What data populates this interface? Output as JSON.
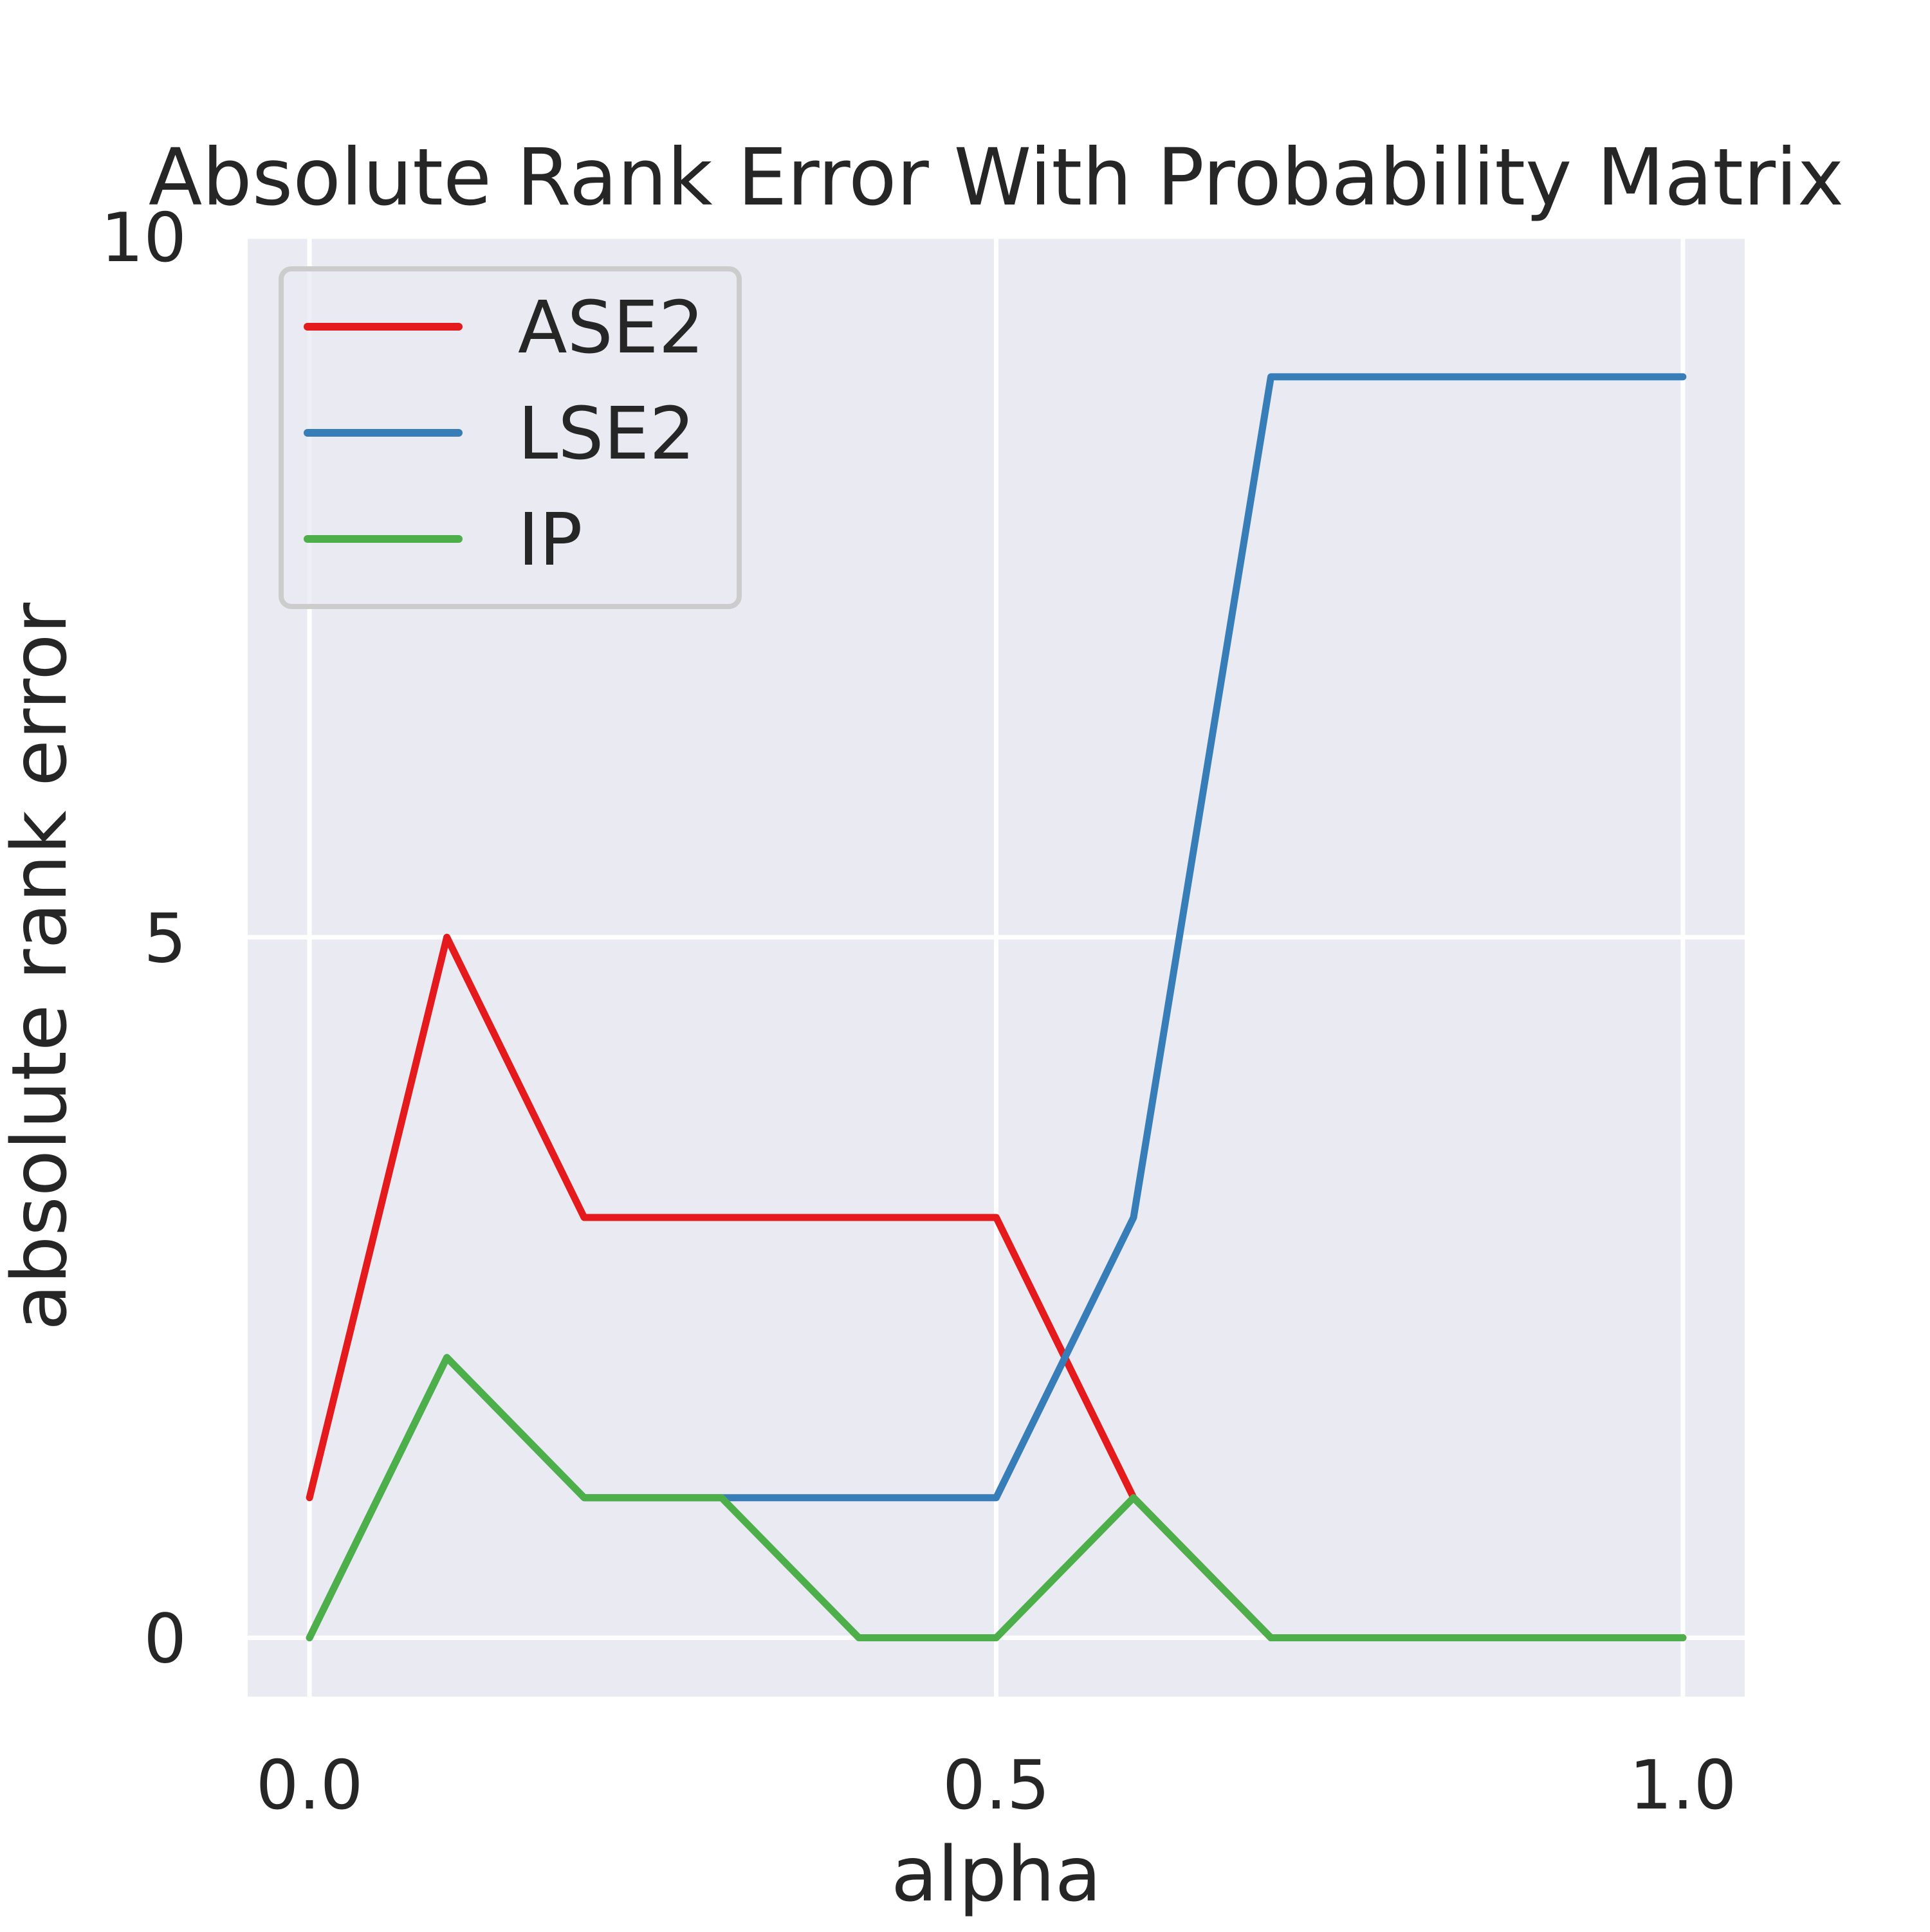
{
  "chart_data": {
    "type": "line",
    "title": "Absolute Rank Error With Probability Matrix",
    "xlabel": "alpha",
    "ylabel": "absolute rank error",
    "xlim": [
      -0.045,
      1.045
    ],
    "ylim": [
      -0.42,
      10.0
    ],
    "xticks": [
      0.0,
      0.5,
      1.0
    ],
    "xtick_labels": [
      "0.0",
      "0.5",
      "1.0"
    ],
    "yticks": [
      0,
      5,
      10
    ],
    "ytick_labels": [
      "0",
      "5",
      "10"
    ],
    "grid": true,
    "legend_position": "upper-left",
    "x": [
      0.0,
      0.1,
      0.2,
      0.3,
      0.4,
      0.5,
      0.6,
      0.7,
      0.8,
      0.9,
      1.0
    ],
    "series": [
      {
        "name": "ASE2",
        "color": "#e41a1c",
        "values": [
          1,
          5,
          3,
          3,
          3,
          3,
          1,
          0,
          0,
          0,
          0
        ]
      },
      {
        "name": "LSE2",
        "color": "#377eb8",
        "values": [
          0,
          2,
          1,
          1,
          1,
          1,
          3,
          9,
          9,
          9,
          9
        ]
      },
      {
        "name": "IP",
        "color": "#4daf4a",
        "values": [
          0,
          2,
          1,
          1,
          0,
          0,
          1,
          0,
          0,
          0,
          0
        ]
      }
    ],
    "colors": {
      "plot_background": "#eaeaf2",
      "grid": "#ffffff",
      "text": "#262626"
    }
  }
}
